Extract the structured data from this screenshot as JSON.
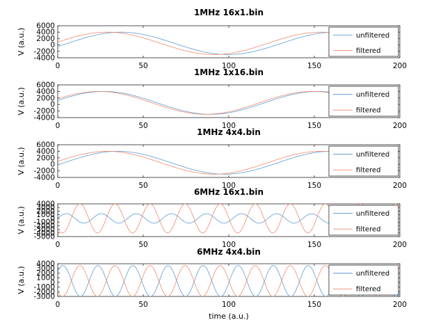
{
  "chart_data": [
    {
      "type": "line",
      "title": "1MHz 16x1.bin",
      "ylabel": "V (a.u.)",
      "xlabel": "",
      "xlim": [
        0,
        200
      ],
      "ylim": [
        -4000,
        6000
      ],
      "xticks": [
        0,
        50,
        100,
        150,
        200
      ],
      "yticks": [
        -4000,
        -2000,
        0,
        2000,
        4000,
        6000
      ],
      "legend": "right",
      "series": [
        {
          "name": "unfiltered",
          "color": "#5b9bd5",
          "amplitude": 3500,
          "offset": 500,
          "period": 125,
          "peak_x": 37,
          "x": [
            0,
            37,
            100,
            162,
            200
          ],
          "y": [
            -1000,
            4000,
            -3000,
            4000,
            1000
          ]
        },
        {
          "name": "filtered",
          "color": "#f08a6a",
          "amplitude": 3500,
          "offset": 500,
          "period": 125,
          "peak_x": 29,
          "x": [
            0,
            29,
            92,
            154,
            200
          ],
          "y": [
            1200,
            4000,
            -3000,
            4000,
            -500
          ]
        }
      ]
    },
    {
      "type": "line",
      "title": "1MHz 1x16.bin",
      "ylabel": "V (a.u.)",
      "xlabel": "",
      "xlim": [
        0,
        200
      ],
      "ylim": [
        -4000,
        6000
      ],
      "xticks": [
        0,
        50,
        100,
        150,
        200
      ],
      "yticks": [
        -4000,
        -2000,
        0,
        2000,
        4000,
        6000
      ],
      "legend": "right",
      "series": [
        {
          "name": "unfiltered",
          "color": "#5b9bd5",
          "amplitude": 3500,
          "offset": 500,
          "period": 125,
          "peak_x": 27,
          "x": [
            0,
            27,
            90,
            152,
            200
          ],
          "y": [
            2000,
            4000,
            -3000,
            4000,
            -2000
          ]
        },
        {
          "name": "filtered",
          "color": "#f08a6a",
          "amplitude": 3500,
          "offset": 500,
          "period": 125,
          "peak_x": 24,
          "x": [
            0,
            24,
            87,
            149,
            200
          ],
          "y": [
            2500,
            4000,
            -3000,
            4000,
            -2500
          ]
        }
      ]
    },
    {
      "type": "line",
      "title": "1MHz 4x4.bin",
      "ylabel": "V (a.u.)",
      "xlabel": "",
      "xlim": [
        0,
        200
      ],
      "ylim": [
        -4000,
        6000
      ],
      "xticks": [
        0,
        50,
        100,
        150,
        200
      ],
      "yticks": [
        -4000,
        -2000,
        0,
        2000,
        4000,
        6000
      ],
      "legend": "right",
      "series": [
        {
          "name": "unfiltered",
          "color": "#5b9bd5",
          "amplitude": 3500,
          "offset": 500,
          "period": 125,
          "peak_x": 35,
          "x": [
            0,
            35,
            98,
            160,
            200
          ],
          "y": [
            -500,
            4000,
            -3000,
            4000,
            0
          ]
        },
        {
          "name": "filtered",
          "color": "#f08a6a",
          "amplitude": 3500,
          "offset": 500,
          "period": 125,
          "peak_x": 29,
          "x": [
            0,
            29,
            92,
            154,
            200
          ],
          "y": [
            1200,
            4000,
            -3000,
            4000,
            -1000
          ]
        }
      ]
    },
    {
      "type": "line",
      "title": "6MHz 16x1.bin",
      "ylabel": "V (a.u.)",
      "xlabel": "",
      "xlim": [
        0,
        200
      ],
      "ylim": [
        -5000,
        4000
      ],
      "xticks": [
        0,
        50,
        100,
        150,
        200
      ],
      "yticks": [
        -5000,
        -4000,
        -3000,
        -2000,
        -1000,
        0,
        1000,
        2000,
        3000,
        4000
      ],
      "legend": "right",
      "series": [
        {
          "name": "unfiltered",
          "color": "#5b9bd5",
          "amplitude": 1300,
          "offset": 0,
          "period": 20.5,
          "peak_x": 5
        },
        {
          "name": "filtered",
          "color": "#f08a6a",
          "amplitude": 4000,
          "offset": 0,
          "period": 20.5,
          "peak_x": 13
        }
      ]
    },
    {
      "type": "line",
      "title": "6MHz 4x4.bin",
      "ylabel": "V (a.u.)",
      "xlabel": "time (a.u.)",
      "xlim": [
        0,
        200
      ],
      "ylim": [
        -3000,
        4000
      ],
      "xticks": [
        0,
        50,
        100,
        150,
        200
      ],
      "yticks": [
        -3000,
        -2000,
        -1000,
        0,
        1000,
        2000,
        3000,
        4000
      ],
      "legend": "right",
      "series": [
        {
          "name": "unfiltered",
          "color": "#5b9bd5",
          "amplitude": 3300,
          "offset": 300,
          "period": 20.5,
          "peak_x": 3
        },
        {
          "name": "filtered",
          "color": "#f08a6a",
          "amplitude": 3300,
          "offset": 300,
          "period": 20.5,
          "peak_x": 13
        }
      ]
    }
  ]
}
